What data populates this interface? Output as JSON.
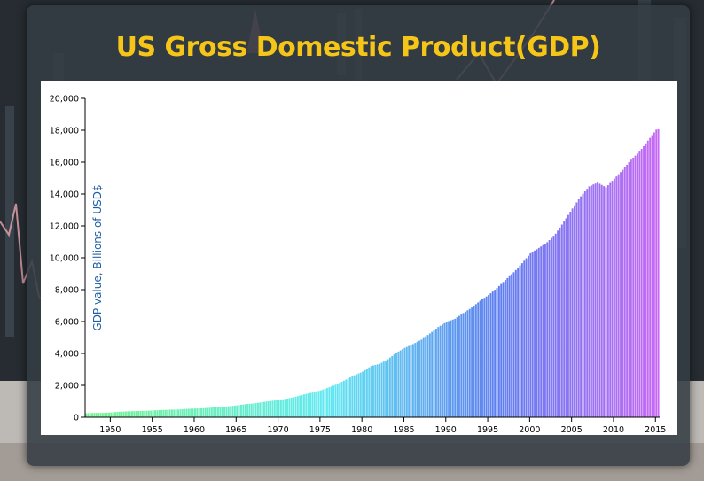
{
  "title": "US Gross Domestic Product(GDP)",
  "colors": {
    "title": "#f5c518",
    "ylabel": "#1f5fa8",
    "bar_start": "#6ef58a",
    "bar_mid": "#62e9f2",
    "bar_mid2": "#5d7df0",
    "bar_end": "#c869f5"
  },
  "chart_data": {
    "type": "bar",
    "ylabel": "GDP value, Billions of USD$",
    "xlabel": "",
    "ylim": [
      0,
      20000
    ],
    "yticks": [
      0,
      2000,
      4000,
      6000,
      8000,
      10000,
      12000,
      14000,
      16000,
      18000,
      20000
    ],
    "ytick_labels": [
      "0",
      "2,000",
      "4,000",
      "6,000",
      "8,000",
      "10,000",
      "12,000",
      "14,000",
      "16,000",
      "18,000",
      "20,000"
    ],
    "xticks": [
      1950,
      1955,
      1960,
      1965,
      1970,
      1975,
      1980,
      1985,
      1990,
      1995,
      2000,
      2005,
      2010,
      2015
    ],
    "xlim": [
      1947,
      2015.5
    ],
    "grid": false,
    "legend": "none",
    "frequency": "quarterly",
    "annual_values": {
      "1947": 244,
      "1948": 270,
      "1949": 272,
      "1950": 300,
      "1951": 344,
      "1952": 366,
      "1953": 387,
      "1954": 392,
      "1955": 426,
      "1956": 450,
      "1957": 474,
      "1958": 481,
      "1959": 522,
      "1960": 543,
      "1961": 564,
      "1962": 604,
      "1963": 638,
      "1964": 686,
      "1965": 743,
      "1966": 815,
      "1967": 862,
      "1968": 943,
      "1969": 1020,
      "1970": 1075,
      "1971": 1168,
      "1972": 1283,
      "1973": 1429,
      "1974": 1548,
      "1975": 1689,
      "1976": 1878,
      "1977": 2086,
      "1978": 2357,
      "1979": 2632,
      "1980": 2862,
      "1981": 3211,
      "1982": 3345,
      "1983": 3638,
      "1984": 4041,
      "1985": 4347,
      "1986": 4590,
      "1987": 4870,
      "1988": 5253,
      "1989": 5658,
      "1990": 5980,
      "1991": 6174,
      "1992": 6539,
      "1993": 6879,
      "1994": 7309,
      "1995": 7664,
      "1996": 8100,
      "1997": 8609,
      "1998": 9089,
      "1999": 9661,
      "2000": 10285,
      "2001": 10622,
      "2002": 10978,
      "2003": 11511,
      "2004": 12275,
      "2005": 13094,
      "2006": 13856,
      "2007": 14478,
      "2008": 14719,
      "2009": 14419,
      "2010": 14964,
      "2011": 15518,
      "2012": 16155,
      "2013": 16663,
      "2014": 17348,
      "2015": 18037
    },
    "quarterly_values": []
  }
}
